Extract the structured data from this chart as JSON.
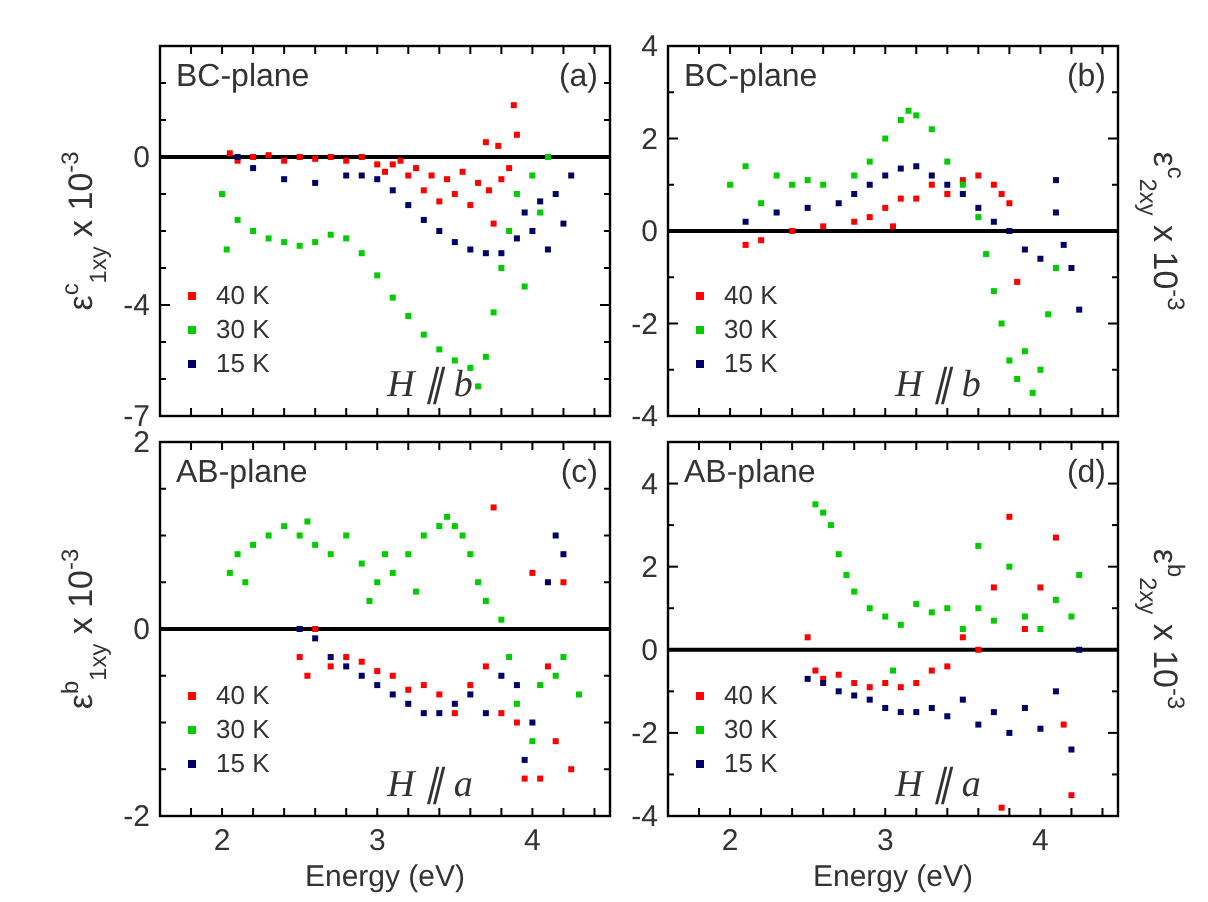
{
  "chart_data": [
    {
      "type": "scatter",
      "ylabel": "ε$^{c}$$_{1xy}$ x 10$^{-3}$",
      "annotations": [
        "BC-plane",
        "(a)",
        "H ∥ b"
      ],
      "xlim": [
        1.6,
        4.5
      ],
      "ylim": [
        -7,
        3
      ],
      "xticks": [
        {
          "value": 1.6,
          "label": null
        },
        {
          "value": 1.8,
          "label": null
        },
        {
          "value": 2,
          "label": null
        },
        {
          "value": 2.2,
          "label": null
        },
        {
          "value": 2.4,
          "label": null
        },
        {
          "value": 2.6,
          "label": null
        },
        {
          "value": 2.8,
          "label": null
        },
        {
          "value": 3,
          "label": null
        },
        {
          "value": 3.2,
          "label": null
        },
        {
          "value": 3.4,
          "label": null
        },
        {
          "value": 3.6,
          "label": null
        },
        {
          "value": 3.8,
          "label": null
        },
        {
          "value": 4,
          "label": null
        },
        {
          "value": 4.2,
          "label": null
        },
        {
          "value": 4.4,
          "label": null
        }
      ],
      "yticks": [
        -7,
        {
          "value": -6,
          "label": null
        },
        {
          "value": -5,
          "label": null
        },
        -4,
        {
          "value": -3,
          "label": null
        },
        {
          "value": -2,
          "label": null
        },
        {
          "value": -1,
          "label": null
        },
        0,
        {
          "value": 1,
          "label": null
        },
        {
          "value": 2,
          "label": null
        }
      ],
      "tick_labels": "y",
      "marker": "square",
      "legend": "bottom left",
      "grid": false,
      "ref_lines": [
        {
          "axis": "y",
          "value": 0,
          "color": "#000000"
        }
      ],
      "series": [
        {
          "name": "40 K",
          "color": "#ff0000",
          "x": [
            2.05,
            2.1,
            2.2,
            2.3,
            2.4,
            2.5,
            2.6,
            2.7,
            2.8,
            2.9,
            3.0,
            3.05,
            3.1,
            3.15,
            3.2,
            3.25,
            3.3,
            3.35,
            3.4,
            3.45,
            3.5,
            3.55,
            3.6,
            3.65,
            3.7,
            3.72,
            3.75,
            3.78,
            3.8,
            3.85,
            3.88,
            3.9
          ],
          "values": [
            0.1,
            -0.1,
            0,
            0.05,
            -0.1,
            0,
            -0.05,
            0,
            -0.1,
            0,
            -0.2,
            -0.4,
            -0.2,
            -0.1,
            -0.5,
            -0.3,
            -0.9,
            -0.5,
            -1.2,
            -0.6,
            -1.0,
            -0.4,
            -1.3,
            -0.7,
            0.4,
            -0.9,
            -1.8,
            0.3,
            -0.6,
            -0.3,
            1.4,
            0.6
          ]
        },
        {
          "name": "30 K",
          "color": "#00cc00",
          "x": [
            2.0,
            2.03,
            2.1,
            2.2,
            2.3,
            2.4,
            2.5,
            2.6,
            2.7,
            2.8,
            2.9,
            3.0,
            3.1,
            3.2,
            3.3,
            3.4,
            3.5,
            3.6,
            3.65,
            3.7,
            3.75,
            3.8,
            3.85,
            3.9,
            3.95,
            4.0,
            4.05,
            4.1
          ],
          "values": [
            -1.0,
            -2.5,
            -1.7,
            -2.0,
            -2.2,
            -2.3,
            -2.4,
            -2.3,
            -2.1,
            -2.2,
            -2.6,
            -3.2,
            -3.8,
            -4.3,
            -4.8,
            -5.2,
            -5.5,
            -5.7,
            -6.2,
            -5.4,
            -4.2,
            -3.0,
            -2.0,
            -1.0,
            -3.5,
            -0.5,
            -1.5,
            0.0
          ]
        },
        {
          "name": "15 K",
          "color": "#000066",
          "x": [
            2.1,
            2.2,
            2.4,
            2.6,
            2.8,
            2.9,
            3.0,
            3.1,
            3.2,
            3.3,
            3.4,
            3.5,
            3.6,
            3.7,
            3.8,
            3.9,
            3.95,
            4.0,
            4.05,
            4.1,
            4.15,
            4.2,
            4.25
          ],
          "values": [
            0,
            -0.3,
            -0.6,
            -0.7,
            -0.5,
            -0.5,
            -0.6,
            -0.9,
            -1.3,
            -1.7,
            -2.0,
            -2.3,
            -2.5,
            -2.6,
            -2.6,
            -2.2,
            -1.5,
            -2.0,
            -1.2,
            -2.5,
            -1.0,
            -1.8,
            -0.5
          ]
        }
      ]
    },
    {
      "type": "scatter",
      "y2label": "ε$^{c}$$_{2xy}$ x 10$^{-3}$",
      "annotations": [
        "BC-plane",
        "(b)",
        "H ∥ b"
      ],
      "xlim": [
        1.6,
        4.5
      ],
      "ylim": [
        -4,
        4
      ],
      "xticks": [
        {
          "value": 1.6,
          "label": null
        },
        {
          "value": 1.8,
          "label": null
        },
        {
          "value": 2,
          "label": null
        },
        {
          "value": 2.2,
          "label": null
        },
        {
          "value": 2.4,
          "label": null
        },
        {
          "value": 2.6,
          "label": null
        },
        {
          "value": 2.8,
          "label": null
        },
        {
          "value": 3,
          "label": null
        },
        {
          "value": 3.2,
          "label": null
        },
        {
          "value": 3.4,
          "label": null
        },
        {
          "value": 3.6,
          "label": null
        },
        {
          "value": 3.8,
          "label": null
        },
        {
          "value": 4,
          "label": null
        },
        {
          "value": 4.2,
          "label": null
        },
        {
          "value": 4.4,
          "label": null
        }
      ],
      "yticks": [
        -4,
        {
          "value": -3,
          "label": null
        },
        -2,
        {
          "value": -1,
          "label": null
        },
        0,
        {
          "value": 1,
          "label": null
        },
        2,
        {
          "value": 3,
          "label": null
        },
        4
      ],
      "tick_labels": "y",
      "marker": "square",
      "legend": "bottom left",
      "grid": false,
      "ref_lines": [
        {
          "axis": "y",
          "value": 0,
          "color": "#000000"
        }
      ],
      "series": [
        {
          "name": "40 K",
          "color": "#ff0000",
          "x": [
            2.1,
            2.2,
            2.4,
            2.6,
            2.8,
            2.9,
            3.0,
            3.05,
            3.1,
            3.2,
            3.3,
            3.4,
            3.5,
            3.6,
            3.7,
            3.75,
            3.8,
            3.85
          ],
          "values": [
            -0.3,
            -0.2,
            0.0,
            0.1,
            0.2,
            0.3,
            0.5,
            0.1,
            0.7,
            0.7,
            1.0,
            0.8,
            1.1,
            1.2,
            1.0,
            0.8,
            0.6,
            -1.1
          ]
        },
        {
          "name": "30 K",
          "color": "#00cc00",
          "x": [
            2.0,
            2.1,
            2.2,
            2.3,
            2.4,
            2.5,
            2.6,
            2.8,
            2.9,
            3.0,
            3.1,
            3.15,
            3.2,
            3.3,
            3.4,
            3.5,
            3.6,
            3.65,
            3.7,
            3.75,
            3.8,
            3.85,
            3.9,
            3.95,
            4.0,
            4.05,
            4.1
          ],
          "values": [
            1.0,
            1.4,
            0.6,
            1.2,
            1.0,
            1.1,
            1.0,
            1.2,
            1.5,
            2.0,
            2.4,
            2.6,
            2.5,
            2.2,
            1.5,
            1.0,
            0.3,
            -0.5,
            -1.3,
            -2.0,
            -2.8,
            -3.2,
            -2.6,
            -3.5,
            -3.0,
            -1.8,
            -0.8
          ]
        },
        {
          "name": "15 K",
          "color": "#000066",
          "x": [
            2.1,
            2.3,
            2.5,
            2.7,
            2.8,
            2.9,
            3.0,
            3.1,
            3.2,
            3.3,
            3.4,
            3.5,
            3.6,
            3.7,
            3.8,
            3.9,
            4.0,
            4.1,
            4.1,
            4.15,
            4.2,
            4.25
          ],
          "values": [
            0.2,
            0.4,
            0.5,
            0.6,
            0.8,
            1.0,
            1.2,
            1.35,
            1.4,
            1.2,
            1.0,
            0.8,
            0.5,
            0.2,
            0.0,
            -0.4,
            -0.6,
            0.4,
            1.1,
            -0.3,
            -0.8,
            -1.7
          ]
        }
      ]
    },
    {
      "type": "scatter",
      "xlabel": "Energy (eV)",
      "ylabel": "ε$^{b}$$_{1xy}$ x 10$^{-3}$",
      "annotations": [
        "AB-plane",
        "(c)",
        "H ∥ a"
      ],
      "xlim": [
        1.6,
        4.5
      ],
      "ylim": [
        -2,
        2
      ],
      "xticks": [
        {
          "value": 1.6,
          "label": null
        },
        {
          "value": 1.8,
          "label": null
        },
        2,
        {
          "value": 2.2,
          "label": null
        },
        {
          "value": 2.4,
          "label": null
        },
        {
          "value": 2.6,
          "label": null
        },
        {
          "value": 2.8,
          "label": null
        },
        3,
        {
          "value": 3.2,
          "label": null
        },
        {
          "value": 3.4,
          "label": null
        },
        {
          "value": 3.6,
          "label": null
        },
        {
          "value": 3.8,
          "label": null
        },
        4,
        {
          "value": 4.2,
          "label": null
        },
        {
          "value": 4.4,
          "label": null
        }
      ],
      "yticks": [
        -2,
        {
          "value": -1.5,
          "label": null
        },
        {
          "value": -1,
          "label": null
        },
        {
          "value": -0.5,
          "label": null
        },
        0,
        {
          "value": 0.5,
          "label": null
        },
        {
          "value": 1,
          "label": null
        },
        {
          "value": 1.5,
          "label": null
        },
        2
      ],
      "marker": "square",
      "legend": "bottom left",
      "grid": false,
      "ref_lines": [
        {
          "axis": "y",
          "value": 0,
          "color": "#000000"
        }
      ],
      "series": [
        {
          "name": "40 K",
          "color": "#ff0000",
          "x": [
            2.5,
            2.55,
            2.6,
            2.7,
            2.8,
            2.9,
            3.0,
            3.1,
            3.2,
            3.3,
            3.4,
            3.5,
            3.6,
            3.7,
            3.75,
            3.8,
            3.9,
            3.95,
            4.0,
            4.05,
            4.1,
            4.15,
            4.2,
            4.25
          ],
          "values": [
            -0.3,
            -0.5,
            0.0,
            -0.4,
            -0.3,
            -0.35,
            -0.45,
            -0.5,
            -0.65,
            -0.6,
            -0.7,
            -0.9,
            -0.6,
            -0.4,
            1.3,
            -0.9,
            -1.0,
            -1.6,
            0.6,
            -1.6,
            -0.4,
            -1.2,
            0.5,
            -1.5
          ]
        },
        {
          "name": "30 K",
          "color": "#00cc00",
          "x": [
            2.05,
            2.1,
            2.15,
            2.2,
            2.3,
            2.4,
            2.5,
            2.55,
            2.6,
            2.7,
            2.8,
            2.9,
            2.95,
            3.0,
            3.05,
            3.1,
            3.2,
            3.25,
            3.3,
            3.4,
            3.45,
            3.5,
            3.55,
            3.6,
            3.65,
            3.7,
            3.8,
            3.85,
            3.9,
            4.0,
            4.05,
            4.15,
            4.2,
            4.3
          ],
          "values": [
            0.6,
            0.8,
            0.5,
            0.9,
            1.0,
            1.1,
            1.0,
            1.15,
            0.9,
            0.8,
            1.0,
            0.7,
            0.3,
            0.5,
            0.8,
            0.6,
            0.8,
            0.4,
            1.0,
            1.1,
            1.2,
            1.1,
            1.0,
            0.8,
            0.5,
            0.3,
            0.1,
            -0.3,
            -0.8,
            -1.2,
            -0.6,
            -0.5,
            -0.3,
            -0.7
          ]
        },
        {
          "name": "15 K",
          "color": "#000066",
          "x": [
            2.5,
            2.6,
            2.7,
            2.8,
            2.9,
            3.0,
            3.1,
            3.2,
            3.3,
            3.4,
            3.5,
            3.6,
            3.7,
            3.8,
            3.9,
            3.95,
            4.0,
            4.1,
            4.15,
            4.2
          ],
          "values": [
            0.0,
            -0.1,
            -0.3,
            -0.4,
            -0.5,
            -0.6,
            -0.7,
            -0.8,
            -0.9,
            -0.9,
            -0.8,
            -0.7,
            -0.9,
            -0.5,
            -0.6,
            -1.4,
            -1.0,
            0.5,
            1.0,
            0.8
          ]
        }
      ]
    },
    {
      "type": "scatter",
      "xlabel": "Energy (eV)",
      "y2label": "ε$^{b}$$_{2xy}$ x 10$^{-3}$",
      "annotations": [
        "AB-plane",
        "(d)",
        "H ∥ a"
      ],
      "xlim": [
        1.6,
        4.5
      ],
      "ylim": [
        -4,
        5
      ],
      "xticks": [
        {
          "value": 1.6,
          "label": null
        },
        {
          "value": 1.8,
          "label": null
        },
        2,
        {
          "value": 2.2,
          "label": null
        },
        {
          "value": 2.4,
          "label": null
        },
        {
          "value": 2.6,
          "label": null
        },
        {
          "value": 2.8,
          "label": null
        },
        3,
        {
          "value": 3.2,
          "label": null
        },
        {
          "value": 3.4,
          "label": null
        },
        {
          "value": 3.6,
          "label": null
        },
        {
          "value": 3.8,
          "label": null
        },
        4,
        {
          "value": 4.2,
          "label": null
        },
        {
          "value": 4.4,
          "label": null
        }
      ],
      "yticks": [
        -4,
        {
          "value": -3,
          "label": null
        },
        -2,
        {
          "value": -1,
          "label": null
        },
        0,
        {
          "value": 1,
          "label": null
        },
        2,
        {
          "value": 3,
          "label": null
        },
        4
      ],
      "marker": "square",
      "legend": "bottom left",
      "grid": false,
      "ref_lines": [
        {
          "axis": "y",
          "value": 0,
          "color": "#000000"
        }
      ],
      "series": [
        {
          "name": "40 K",
          "color": "#ff0000",
          "x": [
            2.5,
            2.55,
            2.6,
            2.7,
            2.8,
            2.9,
            3.0,
            3.1,
            3.2,
            3.3,
            3.4,
            3.5,
            3.6,
            3.7,
            3.75,
            3.8,
            3.9,
            4.0,
            4.1,
            4.15,
            4.2
          ],
          "values": [
            0.3,
            -0.5,
            -0.7,
            -0.6,
            -0.8,
            -0.9,
            -0.8,
            -0.9,
            -0.8,
            -0.5,
            -0.4,
            0.3,
            0.0,
            1.5,
            -3.8,
            3.2,
            0.5,
            1.5,
            2.7,
            -1.8,
            -3.5
          ]
        },
        {
          "name": "30 K",
          "color": "#00cc00",
          "x": [
            2.55,
            2.6,
            2.65,
            2.7,
            2.75,
            2.8,
            2.9,
            3.0,
            3.05,
            3.1,
            3.2,
            3.3,
            3.4,
            3.5,
            3.6,
            3.6,
            3.7,
            3.8,
            3.9,
            4.0,
            4.1,
            4.2,
            4.25
          ],
          "values": [
            3.5,
            3.3,
            3.0,
            2.3,
            1.8,
            1.4,
            1.0,
            0.8,
            -0.5,
            0.6,
            1.1,
            0.9,
            1.0,
            0.5,
            1.0,
            2.5,
            0.7,
            2.0,
            0.8,
            0.5,
            1.2,
            0.8,
            1.8
          ]
        },
        {
          "name": "15 K",
          "color": "#000066",
          "x": [
            2.5,
            2.6,
            2.7,
            2.8,
            2.9,
            3.0,
            3.1,
            3.2,
            3.3,
            3.4,
            3.5,
            3.6,
            3.7,
            3.8,
            3.9,
            4.0,
            4.1,
            4.2,
            4.25
          ],
          "values": [
            -0.7,
            -0.8,
            -1.0,
            -1.1,
            -1.2,
            -1.4,
            -1.5,
            -1.5,
            -1.4,
            -1.6,
            -1.2,
            -1.8,
            -1.5,
            -2.0,
            -1.4,
            -1.9,
            -1.0,
            -2.4,
            0.0
          ]
        }
      ]
    }
  ]
}
